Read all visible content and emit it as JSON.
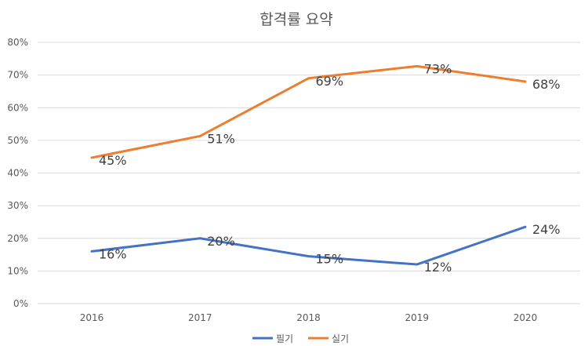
{
  "chart_data": {
    "type": "line",
    "title": "합격률 요약",
    "categories": [
      "2016",
      "2017",
      "2018",
      "2019",
      "2020"
    ],
    "ylim": [
      0,
      80
    ],
    "yticks": [
      0,
      10,
      20,
      30,
      40,
      50,
      60,
      70,
      80
    ],
    "ytick_labels": [
      "0%",
      "10%",
      "20%",
      "30%",
      "40%",
      "50%",
      "60%",
      "70%",
      "80%"
    ],
    "series": [
      {
        "name": "필기",
        "color": "#4472c4",
        "values": [
          16,
          20,
          14.5,
          12,
          23.5
        ],
        "labels": [
          "16%",
          "20%",
          "15%",
          "12%",
          "24%"
        ]
      },
      {
        "name": "실기",
        "color": "#ed7d31",
        "values": [
          44.7,
          51.3,
          69,
          72.7,
          68
        ],
        "labels": [
          "45%",
          "51%",
          "69%",
          "73%",
          "68%"
        ]
      }
    ],
    "legend": "bottom",
    "grid": true
  }
}
